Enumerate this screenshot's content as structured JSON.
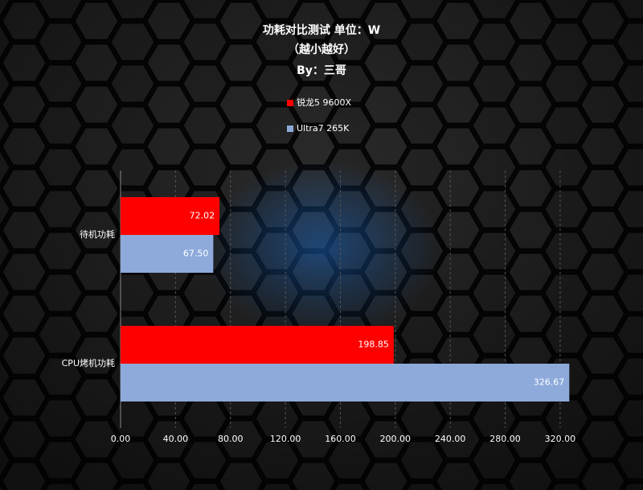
{
  "chart_data": {
    "type": "hbar",
    "title": "功耗对比测试 单位：W",
    "subtitle": "（越小越好）",
    "author": "By：三哥",
    "categories": [
      "待机功耗",
      "CPU烤机功耗"
    ],
    "series": [
      {
        "name": "锐龙5 9600X",
        "color": "#ff0000",
        "values": [
          72.02,
          198.85
        ],
        "value_labels": [
          "72.02",
          "198.85"
        ]
      },
      {
        "name": "Ultra7 265K",
        "color": "#8eaadb",
        "values": [
          67.5,
          326.67
        ],
        "value_labels": [
          "67.50",
          "326.67"
        ]
      }
    ],
    "xlim": [
      0,
      330
    ],
    "xticks": [
      {
        "value": 0,
        "label": "0.00"
      },
      {
        "value": 40,
        "label": "40.00"
      },
      {
        "value": 80,
        "label": "80.00"
      },
      {
        "value": 120,
        "label": "120.00"
      },
      {
        "value": 160,
        "label": "160.00"
      },
      {
        "value": 200,
        "label": "200.00"
      },
      {
        "value": 240,
        "label": "240.00"
      },
      {
        "value": 280,
        "label": "280.00"
      },
      {
        "value": 320,
        "label": "320.00"
      }
    ],
    "grid": true
  }
}
